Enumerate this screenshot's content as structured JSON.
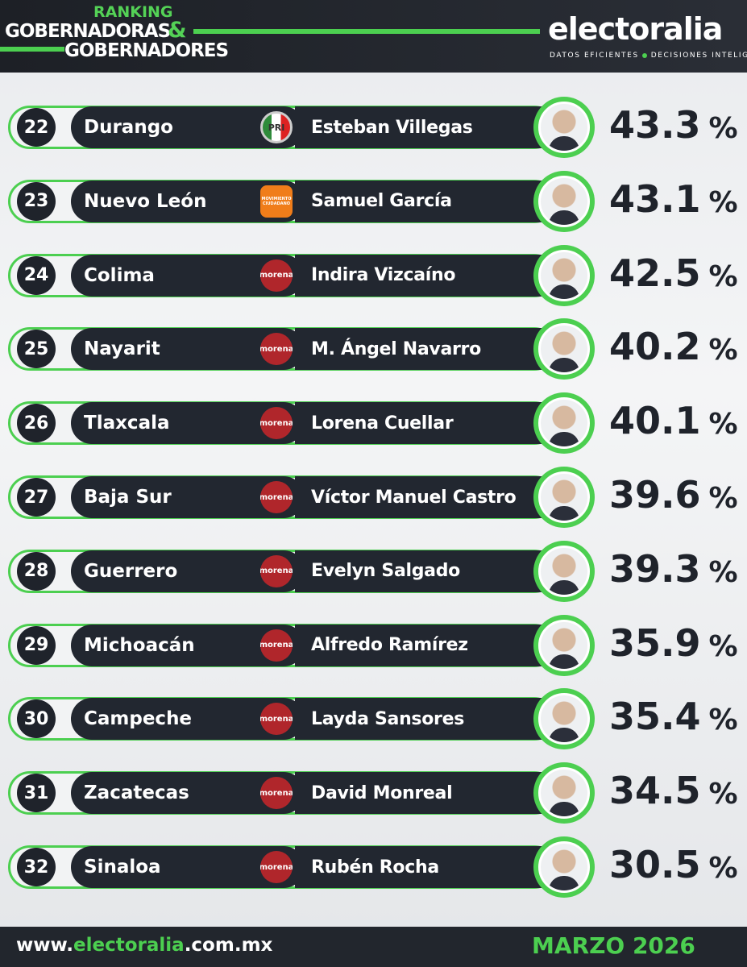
{
  "header": {
    "kicker": "RANKING",
    "title_line1": "GOBERNADORAS",
    "ampersand": "&",
    "title_line2": "GOBERNADORES",
    "brand": "electoralia",
    "tagline_left": "DATOS EFICIENTES",
    "tagline_right": "DECISIONES INTELIGENTES"
  },
  "percent_sign": "%",
  "rows": [
    {
      "rank": "22",
      "state": "Durango",
      "party": "PRI",
      "governor": "Esteban Villegas",
      "approval": "43.3"
    },
    {
      "rank": "23",
      "state": "Nuevo León",
      "party": "MOVIMIENTO CIUDADANO",
      "governor": "Samuel García",
      "approval": "43.1"
    },
    {
      "rank": "24",
      "state": "Colima",
      "party": "morena",
      "governor": "Indira Vizcaíno",
      "approval": "42.5"
    },
    {
      "rank": "25",
      "state": "Nayarit",
      "party": "morena",
      "governor": "M. Ángel Navarro",
      "approval": "40.2"
    },
    {
      "rank": "26",
      "state": "Tlaxcala",
      "party": "morena",
      "governor": "Lorena Cuellar",
      "approval": "40.1"
    },
    {
      "rank": "27",
      "state": "Baja Sur",
      "party": "morena",
      "governor": "Víctor Manuel Castro",
      "approval": "39.6"
    },
    {
      "rank": "28",
      "state": "Guerrero",
      "party": "morena",
      "governor": "Evelyn Salgado",
      "approval": "39.3"
    },
    {
      "rank": "29",
      "state": "Michoacán",
      "party": "morena",
      "governor": "Alfredo Ramírez",
      "approval": "35.9"
    },
    {
      "rank": "30",
      "state": "Campeche",
      "party": "morena",
      "governor": "Layda Sansores",
      "approval": "35.4"
    },
    {
      "rank": "31",
      "state": "Zacatecas",
      "party": "morena",
      "governor": "David Monreal",
      "approval": "34.5"
    },
    {
      "rank": "32",
      "state": "Sinaloa",
      "party": "morena",
      "governor": "Rubén Rocha",
      "approval": "30.5"
    }
  ],
  "footer": {
    "url_prefix": "www.",
    "url_brand": "electoralia",
    "url_suffix": ".com.mx",
    "date": "MARZO 2026"
  }
}
